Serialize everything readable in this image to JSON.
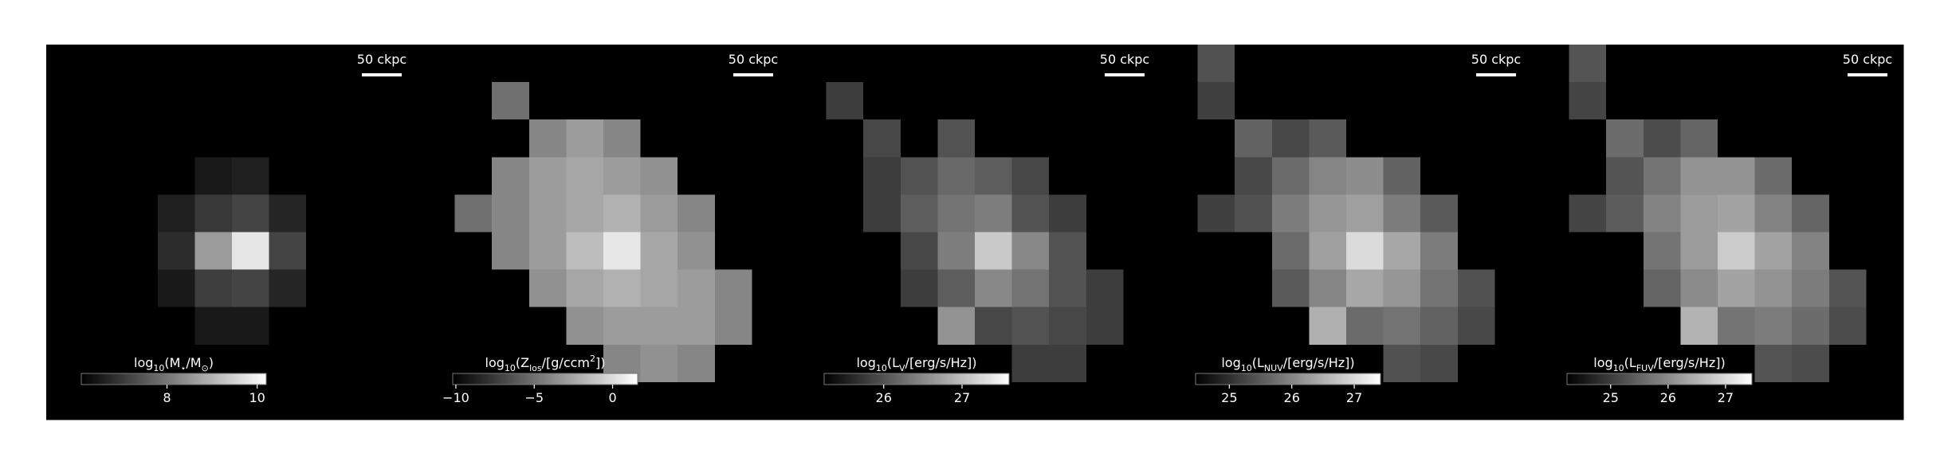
{
  "chart_data": [
    {
      "type": "heatmap",
      "scalebar": "50 ckpc",
      "colorbar_label": [
        {
          "text": "log"
        },
        {
          "text": "10",
          "sub": true
        },
        {
          "text": "(M"
        },
        {
          "text": "⋆",
          "sub": true
        },
        {
          "text": "/M"
        },
        {
          "text": "⊙",
          "sub": true
        },
        {
          "text": ")"
        }
      ],
      "clim": [
        6.1,
        10.2
      ],
      "cticks": [
        8,
        10
      ],
      "image": [
        [
          6.1,
          6.1,
          6.1,
          6.1,
          6.1,
          6.1,
          6.1,
          6.1,
          6.1,
          6.1
        ],
        [
          6.1,
          6.1,
          6.1,
          6.1,
          6.1,
          6.1,
          6.1,
          6.1,
          6.1,
          6.1
        ],
        [
          6.1,
          6.1,
          6.1,
          6.1,
          6.1,
          6.1,
          6.1,
          6.1,
          6.1,
          6.1
        ],
        [
          6.1,
          6.1,
          6.1,
          6.1,
          6.5,
          6.6,
          6.1,
          6.1,
          6.1,
          6.1
        ],
        [
          6.1,
          6.1,
          6.1,
          6.6,
          7.0,
          7.2,
          6.7,
          6.1,
          6.1,
          6.1
        ],
        [
          6.1,
          6.1,
          6.1,
          6.8,
          8.6,
          9.8,
          7.2,
          6.1,
          6.1,
          6.1
        ],
        [
          6.1,
          6.1,
          6.1,
          6.5,
          7.1,
          7.2,
          6.7,
          6.1,
          6.1,
          6.1
        ],
        [
          6.1,
          6.1,
          6.1,
          6.1,
          6.5,
          6.5,
          6.1,
          6.1,
          6.1,
          6.1
        ],
        [
          6.1,
          6.1,
          6.1,
          6.1,
          6.1,
          6.1,
          6.1,
          6.1,
          6.1,
          6.1
        ],
        [
          6.1,
          6.1,
          6.1,
          6.1,
          6.1,
          6.1,
          6.1,
          6.1,
          6.1,
          6.1
        ]
      ]
    },
    {
      "type": "heatmap",
      "scalebar": "50 ckpc",
      "colorbar_label": [
        {
          "text": "log"
        },
        {
          "text": "10",
          "sub": true
        },
        {
          "text": "(Z"
        },
        {
          "text": "los",
          "sub": true
        },
        {
          "text": "/[g/ccm"
        },
        {
          "text": "2",
          "sup": true
        },
        {
          "text": "])"
        }
      ],
      "clim": [
        -10.2,
        1.6
      ],
      "cticks": [
        {
          "value": -10,
          "label": "−10"
        },
        {
          "value": -5,
          "label": "−5"
        },
        0
      ],
      "image": [
        [
          -10.2,
          -10.2,
          -10.2,
          -10.2,
          -10.2,
          -10.2,
          -10.2,
          -10.2,
          -10.2,
          -10.2
        ],
        [
          -10.2,
          -10.2,
          -5,
          -10.2,
          -10.2,
          -10.2,
          -10.2,
          -10.2,
          -10.2,
          -10.2
        ],
        [
          -10.2,
          -10.2,
          -10.2,
          -4,
          -3,
          -4,
          -10.2,
          -10.2,
          -10.2,
          -10.2
        ],
        [
          -10.2,
          -10.2,
          -4,
          -3,
          -2.5,
          -3,
          -3.5,
          -10.2,
          -10.2,
          -10.2
        ],
        [
          -10.2,
          -5,
          -4,
          -3,
          -2.5,
          -2,
          -3,
          -4,
          -10.2,
          -10.2
        ],
        [
          -10.2,
          -10.2,
          -4,
          -3,
          -1.5,
          0.5,
          -2.5,
          -3.5,
          -10.2,
          -10.2
        ],
        [
          -10.2,
          -10.2,
          -10.2,
          -3.5,
          -2.5,
          -2,
          -2.5,
          -3,
          -4,
          -10.2
        ],
        [
          -10.2,
          -10.2,
          -10.2,
          -10.2,
          -3.5,
          -3,
          -3,
          -3,
          -4,
          -10.2
        ],
        [
          -10.2,
          -10.2,
          -10.2,
          -10.2,
          -10.2,
          -4,
          -3.5,
          -4,
          -10.2,
          -10.2
        ],
        [
          -10.2,
          -10.2,
          -10.2,
          -10.2,
          -10.2,
          -10.2,
          -10.2,
          -10.2,
          -10.2,
          -10.2
        ]
      ]
    },
    {
      "type": "heatmap",
      "scalebar": "50 ckpc",
      "colorbar_label": [
        {
          "text": "log"
        },
        {
          "text": "10",
          "sub": true
        },
        {
          "text": "(L"
        },
        {
          "text": "V",
          "sub": true
        },
        {
          "text": "/[erg/s/Hz])"
        }
      ],
      "clim": [
        25.24,
        27.6
      ],
      "cticks": [
        26,
        27
      ],
      "image": [
        [
          25.24,
          25.24,
          25.24,
          25.24,
          25.24,
          25.24,
          25.24,
          25.24,
          25.24,
          25.24
        ],
        [
          25.24,
          25.8,
          25.24,
          25.24,
          25.24,
          25.24,
          25.24,
          25.24,
          25.24,
          25.24
        ],
        [
          25.24,
          25.24,
          25.9,
          25.24,
          26.0,
          25.24,
          25.24,
          25.24,
          25.24,
          25.24
        ],
        [
          25.24,
          25.24,
          25.8,
          26.0,
          26.2,
          26.1,
          25.9,
          25.24,
          25.24,
          25.24
        ],
        [
          25.24,
          25.24,
          25.8,
          26.1,
          26.3,
          26.4,
          26.0,
          25.8,
          25.24,
          25.24
        ],
        [
          25.24,
          25.24,
          25.24,
          25.9,
          26.4,
          27.1,
          26.5,
          26.0,
          25.24,
          25.24
        ],
        [
          25.24,
          25.24,
          25.24,
          25.8,
          26.1,
          26.5,
          26.3,
          26.0,
          25.8,
          25.24
        ],
        [
          25.24,
          25.24,
          25.24,
          25.24,
          26.6,
          25.9,
          26.0,
          25.9,
          25.8,
          25.24
        ],
        [
          25.24,
          25.24,
          25.24,
          25.24,
          25.24,
          25.24,
          25.8,
          25.8,
          25.24,
          25.24
        ],
        [
          25.24,
          25.24,
          25.24,
          25.24,
          25.24,
          25.24,
          25.24,
          25.24,
          25.24,
          25.24
        ]
      ]
    },
    {
      "type": "heatmap",
      "scalebar": "50 ckpc",
      "colorbar_label": [
        {
          "text": "log"
        },
        {
          "text": "10",
          "sub": true
        },
        {
          "text": "(L"
        },
        {
          "text": "NUV",
          "sub": true
        },
        {
          "text": "/[erg/s/Hz])"
        }
      ],
      "clim": [
        24.46,
        27.42
      ],
      "cticks": [
        25,
        26,
        27
      ],
      "image": [
        [
          24.46,
          25.4,
          24.46,
          24.46,
          24.46,
          24.46,
          24.46,
          24.46,
          24.46,
          24.46
        ],
        [
          24.46,
          25.2,
          24.46,
          24.46,
          24.46,
          24.46,
          24.46,
          24.46,
          24.46,
          24.46
        ],
        [
          24.46,
          24.46,
          25.6,
          25.3,
          25.5,
          24.46,
          24.46,
          24.46,
          24.46,
          24.46
        ],
        [
          24.46,
          24.46,
          25.3,
          25.7,
          26.0,
          26.1,
          25.6,
          24.46,
          24.46,
          24.46
        ],
        [
          24.46,
          25.2,
          25.4,
          25.9,
          26.2,
          26.3,
          25.9,
          25.5,
          24.46,
          24.46
        ],
        [
          24.46,
          24.46,
          24.46,
          25.7,
          26.3,
          27.0,
          26.4,
          25.9,
          24.46,
          24.46
        ],
        [
          24.46,
          24.46,
          24.46,
          25.5,
          26.0,
          26.4,
          26.2,
          25.8,
          25.4,
          24.46
        ],
        [
          24.46,
          24.46,
          24.46,
          24.46,
          26.5,
          25.7,
          25.8,
          25.6,
          25.3,
          24.46
        ],
        [
          24.46,
          24.46,
          24.46,
          24.46,
          24.46,
          24.46,
          25.4,
          25.3,
          24.46,
          24.46
        ],
        [
          24.46,
          24.46,
          24.46,
          24.46,
          24.46,
          24.46,
          24.46,
          24.46,
          24.46,
          24.46
        ]
      ]
    },
    {
      "type": "heatmap",
      "scalebar": "50 ckpc",
      "colorbar_label": [
        {
          "text": "log"
        },
        {
          "text": "10",
          "sub": true
        },
        {
          "text": "(L"
        },
        {
          "text": "FUV",
          "sub": true
        },
        {
          "text": "/[erg/s/Hz])"
        }
      ],
      "clim": [
        24.24,
        27.46
      ],
      "cticks": [
        25,
        26,
        27
      ],
      "image": [
        [
          24.24,
          25.3,
          24.24,
          24.24,
          24.24,
          24.24,
          24.24,
          24.24,
          24.24,
          24.24
        ],
        [
          24.24,
          25.1,
          24.24,
          24.24,
          24.24,
          24.24,
          24.24,
          24.24,
          24.24,
          24.24
        ],
        [
          24.24,
          24.24,
          25.6,
          25.2,
          25.5,
          24.24,
          24.24,
          24.24,
          24.24,
          24.24
        ],
        [
          24.24,
          24.24,
          25.3,
          25.7,
          26.1,
          26.1,
          25.6,
          24.24,
          24.24,
          24.24
        ],
        [
          24.24,
          25.1,
          25.4,
          25.9,
          26.2,
          26.3,
          25.9,
          25.5,
          24.24,
          24.24
        ],
        [
          24.24,
          24.24,
          24.24,
          25.7,
          26.2,
          26.8,
          26.3,
          25.9,
          24.24,
          24.24
        ],
        [
          24.24,
          24.24,
          24.24,
          25.5,
          26.0,
          26.3,
          26.1,
          25.8,
          25.3,
          24.24
        ],
        [
          24.24,
          24.24,
          24.24,
          24.24,
          26.5,
          25.7,
          25.8,
          25.6,
          25.2,
          24.24
        ],
        [
          24.24,
          24.24,
          24.24,
          24.24,
          24.24,
          24.24,
          25.3,
          25.2,
          24.24,
          24.24
        ],
        [
          24.24,
          24.24,
          24.24,
          24.24,
          24.24,
          24.24,
          24.24,
          24.24,
          24.24,
          24.24
        ]
      ]
    }
  ]
}
